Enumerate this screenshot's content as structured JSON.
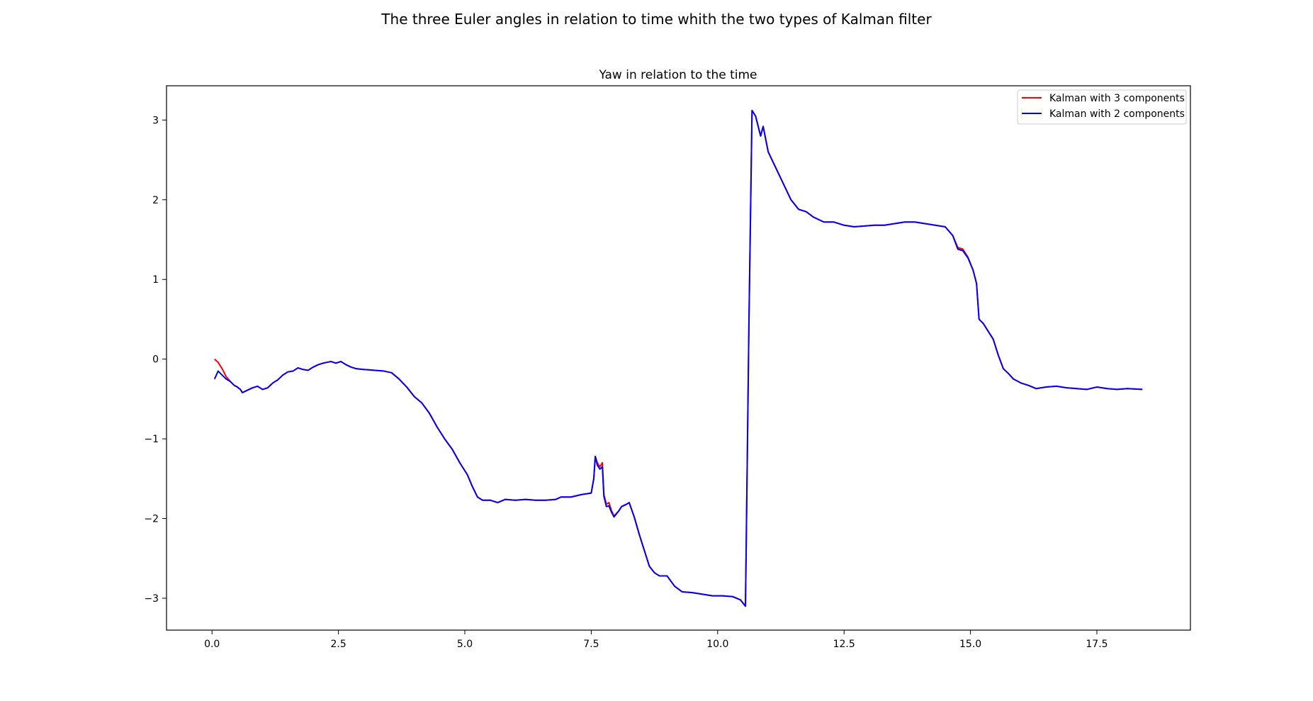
{
  "figure": {
    "suptitle": "The three Euler angles in relation to time whith the two types of Kalman filter"
  },
  "chart_data": {
    "type": "line",
    "title": "Yaw in relation to the time",
    "xlabel": "",
    "ylabel": "",
    "xlim": [
      -0.9,
      19.35
    ],
    "ylim": [
      -3.4,
      3.43
    ],
    "xticks": [
      0.0,
      2.5,
      5.0,
      7.5,
      10.0,
      12.5,
      15.0,
      17.5
    ],
    "xtick_labels": [
      "0.0",
      "2.5",
      "5.0",
      "7.5",
      "10.0",
      "12.5",
      "15.0",
      "17.5"
    ],
    "yticks": [
      -3,
      -2,
      -1,
      0,
      1,
      2,
      3
    ],
    "ytick_labels": [
      "−3",
      "−2",
      "−1",
      "0",
      "1",
      "2",
      "3"
    ],
    "grid": false,
    "legend_position": "top-right",
    "series": [
      {
        "name": "Kalman with 3 components",
        "color": "#ff0000",
        "points": [
          [
            0.05,
            0.0
          ],
          [
            0.12,
            -0.04
          ],
          [
            0.2,
            -0.12
          ],
          [
            0.28,
            -0.22
          ],
          [
            0.36,
            -0.28
          ],
          [
            0.44,
            -0.33
          ],
          [
            0.5,
            -0.35
          ],
          [
            0.56,
            -0.38
          ],
          [
            0.6,
            -0.42
          ],
          [
            0.7,
            -0.39
          ],
          [
            0.8,
            -0.36
          ],
          [
            0.9,
            -0.34
          ],
          [
            1.0,
            -0.38
          ],
          [
            1.1,
            -0.36
          ],
          [
            1.2,
            -0.3
          ],
          [
            1.3,
            -0.26
          ],
          [
            1.4,
            -0.2
          ],
          [
            1.5,
            -0.16
          ],
          [
            1.6,
            -0.15
          ],
          [
            1.7,
            -0.11
          ],
          [
            1.8,
            -0.13
          ],
          [
            1.9,
            -0.14
          ],
          [
            2.0,
            -0.1
          ],
          [
            2.1,
            -0.07
          ],
          [
            2.2,
            -0.05
          ],
          [
            2.35,
            -0.03
          ],
          [
            2.45,
            -0.05
          ],
          [
            2.55,
            -0.03
          ],
          [
            2.65,
            -0.07
          ],
          [
            2.75,
            -0.1
          ],
          [
            2.85,
            -0.12
          ],
          [
            3.0,
            -0.13
          ],
          [
            3.2,
            -0.14
          ],
          [
            3.4,
            -0.15
          ],
          [
            3.55,
            -0.17
          ],
          [
            3.7,
            -0.25
          ],
          [
            3.85,
            -0.35
          ],
          [
            4.0,
            -0.47
          ],
          [
            4.15,
            -0.55
          ],
          [
            4.3,
            -0.68
          ],
          [
            4.45,
            -0.85
          ],
          [
            4.6,
            -1.0
          ],
          [
            4.75,
            -1.13
          ],
          [
            4.9,
            -1.3
          ],
          [
            5.05,
            -1.45
          ],
          [
            5.15,
            -1.6
          ],
          [
            5.25,
            -1.73
          ],
          [
            5.35,
            -1.77
          ],
          [
            5.5,
            -1.77
          ],
          [
            5.65,
            -1.8
          ],
          [
            5.8,
            -1.76
          ],
          [
            6.0,
            -1.77
          ],
          [
            6.2,
            -1.76
          ],
          [
            6.4,
            -1.77
          ],
          [
            6.6,
            -1.77
          ],
          [
            6.8,
            -1.76
          ],
          [
            6.9,
            -1.73
          ],
          [
            7.1,
            -1.73
          ],
          [
            7.3,
            -1.7
          ],
          [
            7.5,
            -1.68
          ],
          [
            7.55,
            -1.5
          ],
          [
            7.58,
            -1.22
          ],
          [
            7.62,
            -1.3
          ],
          [
            7.67,
            -1.35
          ],
          [
            7.72,
            -1.3
          ],
          [
            7.75,
            -1.7
          ],
          [
            7.8,
            -1.82
          ],
          [
            7.85,
            -1.8
          ],
          [
            7.9,
            -1.9
          ],
          [
            7.95,
            -1.97
          ],
          [
            8.05,
            -1.9
          ],
          [
            8.1,
            -1.85
          ],
          [
            8.2,
            -1.82
          ],
          [
            8.25,
            -1.8
          ],
          [
            8.35,
            -1.98
          ],
          [
            8.45,
            -2.2
          ],
          [
            8.55,
            -2.4
          ],
          [
            8.65,
            -2.6
          ],
          [
            8.75,
            -2.68
          ],
          [
            8.85,
            -2.72
          ],
          [
            9.0,
            -2.72
          ],
          [
            9.15,
            -2.85
          ],
          [
            9.3,
            -2.92
          ],
          [
            9.5,
            -2.93
          ],
          [
            9.7,
            -2.95
          ],
          [
            9.9,
            -2.97
          ],
          [
            10.1,
            -2.97
          ],
          [
            10.3,
            -2.98
          ],
          [
            10.45,
            -3.02
          ],
          [
            10.55,
            -3.1
          ],
          [
            10.62,
            0.5
          ],
          [
            10.68,
            3.12
          ],
          [
            10.75,
            3.05
          ],
          [
            10.85,
            2.8
          ],
          [
            10.9,
            2.92
          ],
          [
            11.0,
            2.6
          ],
          [
            11.15,
            2.4
          ],
          [
            11.3,
            2.2
          ],
          [
            11.45,
            2.0
          ],
          [
            11.6,
            1.88
          ],
          [
            11.75,
            1.85
          ],
          [
            11.9,
            1.78
          ],
          [
            12.1,
            1.72
          ],
          [
            12.3,
            1.72
          ],
          [
            12.5,
            1.68
          ],
          [
            12.7,
            1.66
          ],
          [
            12.9,
            1.67
          ],
          [
            13.1,
            1.68
          ],
          [
            13.3,
            1.68
          ],
          [
            13.5,
            1.7
          ],
          [
            13.7,
            1.72
          ],
          [
            13.9,
            1.72
          ],
          [
            14.1,
            1.7
          ],
          [
            14.3,
            1.68
          ],
          [
            14.5,
            1.66
          ],
          [
            14.65,
            1.55
          ],
          [
            14.75,
            1.4
          ],
          [
            14.85,
            1.38
          ],
          [
            14.95,
            1.28
          ],
          [
            15.05,
            1.12
          ],
          [
            15.12,
            0.95
          ],
          [
            15.17,
            0.5
          ],
          [
            15.25,
            0.45
          ],
          [
            15.35,
            0.35
          ],
          [
            15.45,
            0.25
          ],
          [
            15.55,
            0.05
          ],
          [
            15.65,
            -0.12
          ],
          [
            15.75,
            -0.18
          ],
          [
            15.85,
            -0.25
          ],
          [
            16.0,
            -0.3
          ],
          [
            16.15,
            -0.33
          ],
          [
            16.3,
            -0.37
          ],
          [
            16.5,
            -0.35
          ],
          [
            16.7,
            -0.34
          ],
          [
            16.9,
            -0.36
          ],
          [
            17.1,
            -0.37
          ],
          [
            17.3,
            -0.38
          ],
          [
            17.5,
            -0.35
          ],
          [
            17.7,
            -0.37
          ],
          [
            17.9,
            -0.38
          ],
          [
            18.1,
            -0.37
          ],
          [
            18.4,
            -0.38
          ]
        ]
      },
      {
        "name": "Kalman with 2 components",
        "color": "#0000ff",
        "points": [
          [
            0.05,
            -0.25
          ],
          [
            0.12,
            -0.15
          ],
          [
            0.2,
            -0.2
          ],
          [
            0.28,
            -0.25
          ],
          [
            0.36,
            -0.28
          ],
          [
            0.44,
            -0.33
          ],
          [
            0.5,
            -0.35
          ],
          [
            0.56,
            -0.38
          ],
          [
            0.6,
            -0.42
          ],
          [
            0.7,
            -0.39
          ],
          [
            0.8,
            -0.36
          ],
          [
            0.9,
            -0.34
          ],
          [
            1.0,
            -0.38
          ],
          [
            1.1,
            -0.36
          ],
          [
            1.2,
            -0.3
          ],
          [
            1.3,
            -0.26
          ],
          [
            1.4,
            -0.2
          ],
          [
            1.5,
            -0.16
          ],
          [
            1.6,
            -0.15
          ],
          [
            1.7,
            -0.11
          ],
          [
            1.8,
            -0.13
          ],
          [
            1.9,
            -0.14
          ],
          [
            2.0,
            -0.1
          ],
          [
            2.1,
            -0.07
          ],
          [
            2.2,
            -0.05
          ],
          [
            2.35,
            -0.03
          ],
          [
            2.45,
            -0.05
          ],
          [
            2.55,
            -0.03
          ],
          [
            2.65,
            -0.07
          ],
          [
            2.75,
            -0.1
          ],
          [
            2.85,
            -0.12
          ],
          [
            3.0,
            -0.13
          ],
          [
            3.2,
            -0.14
          ],
          [
            3.4,
            -0.15
          ],
          [
            3.55,
            -0.17
          ],
          [
            3.7,
            -0.25
          ],
          [
            3.85,
            -0.35
          ],
          [
            4.0,
            -0.47
          ],
          [
            4.15,
            -0.55
          ],
          [
            4.3,
            -0.68
          ],
          [
            4.45,
            -0.85
          ],
          [
            4.6,
            -1.0
          ],
          [
            4.75,
            -1.13
          ],
          [
            4.9,
            -1.3
          ],
          [
            5.05,
            -1.45
          ],
          [
            5.15,
            -1.6
          ],
          [
            5.25,
            -1.73
          ],
          [
            5.35,
            -1.77
          ],
          [
            5.5,
            -1.77
          ],
          [
            5.65,
            -1.8
          ],
          [
            5.8,
            -1.76
          ],
          [
            6.0,
            -1.77
          ],
          [
            6.2,
            -1.76
          ],
          [
            6.4,
            -1.77
          ],
          [
            6.6,
            -1.77
          ],
          [
            6.8,
            -1.76
          ],
          [
            6.9,
            -1.73
          ],
          [
            7.1,
            -1.73
          ],
          [
            7.3,
            -1.7
          ],
          [
            7.5,
            -1.68
          ],
          [
            7.55,
            -1.5
          ],
          [
            7.58,
            -1.22
          ],
          [
            7.62,
            -1.33
          ],
          [
            7.67,
            -1.38
          ],
          [
            7.72,
            -1.35
          ],
          [
            7.75,
            -1.72
          ],
          [
            7.8,
            -1.85
          ],
          [
            7.85,
            -1.84
          ],
          [
            7.9,
            -1.92
          ],
          [
            7.95,
            -1.98
          ],
          [
            8.05,
            -1.9
          ],
          [
            8.1,
            -1.85
          ],
          [
            8.2,
            -1.82
          ],
          [
            8.25,
            -1.8
          ],
          [
            8.35,
            -1.98
          ],
          [
            8.45,
            -2.2
          ],
          [
            8.55,
            -2.4
          ],
          [
            8.65,
            -2.6
          ],
          [
            8.75,
            -2.68
          ],
          [
            8.85,
            -2.72
          ],
          [
            9.0,
            -2.72
          ],
          [
            9.15,
            -2.85
          ],
          [
            9.3,
            -2.92
          ],
          [
            9.5,
            -2.93
          ],
          [
            9.7,
            -2.95
          ],
          [
            9.9,
            -2.97
          ],
          [
            10.1,
            -2.97
          ],
          [
            10.3,
            -2.98
          ],
          [
            10.45,
            -3.02
          ],
          [
            10.55,
            -3.1
          ],
          [
            10.62,
            0.5
          ],
          [
            10.68,
            3.12
          ],
          [
            10.75,
            3.05
          ],
          [
            10.85,
            2.8
          ],
          [
            10.9,
            2.92
          ],
          [
            11.0,
            2.6
          ],
          [
            11.15,
            2.4
          ],
          [
            11.3,
            2.2
          ],
          [
            11.45,
            2.0
          ],
          [
            11.6,
            1.88
          ],
          [
            11.75,
            1.85
          ],
          [
            11.9,
            1.78
          ],
          [
            12.1,
            1.72
          ],
          [
            12.3,
            1.72
          ],
          [
            12.5,
            1.68
          ],
          [
            12.7,
            1.66
          ],
          [
            12.9,
            1.67
          ],
          [
            13.1,
            1.68
          ],
          [
            13.3,
            1.68
          ],
          [
            13.5,
            1.7
          ],
          [
            13.7,
            1.72
          ],
          [
            13.9,
            1.72
          ],
          [
            14.1,
            1.7
          ],
          [
            14.3,
            1.68
          ],
          [
            14.5,
            1.66
          ],
          [
            14.65,
            1.55
          ],
          [
            14.75,
            1.38
          ],
          [
            14.85,
            1.36
          ],
          [
            14.95,
            1.27
          ],
          [
            15.05,
            1.12
          ],
          [
            15.12,
            0.95
          ],
          [
            15.17,
            0.5
          ],
          [
            15.25,
            0.45
          ],
          [
            15.35,
            0.35
          ],
          [
            15.45,
            0.25
          ],
          [
            15.55,
            0.05
          ],
          [
            15.65,
            -0.12
          ],
          [
            15.75,
            -0.18
          ],
          [
            15.85,
            -0.25
          ],
          [
            16.0,
            -0.3
          ],
          [
            16.15,
            -0.33
          ],
          [
            16.3,
            -0.37
          ],
          [
            16.5,
            -0.35
          ],
          [
            16.7,
            -0.34
          ],
          [
            16.9,
            -0.36
          ],
          [
            17.1,
            -0.37
          ],
          [
            17.3,
            -0.38
          ],
          [
            17.5,
            -0.35
          ],
          [
            17.7,
            -0.37
          ],
          [
            17.9,
            -0.38
          ],
          [
            18.1,
            -0.37
          ],
          [
            18.4,
            -0.38
          ]
        ]
      }
    ]
  }
}
